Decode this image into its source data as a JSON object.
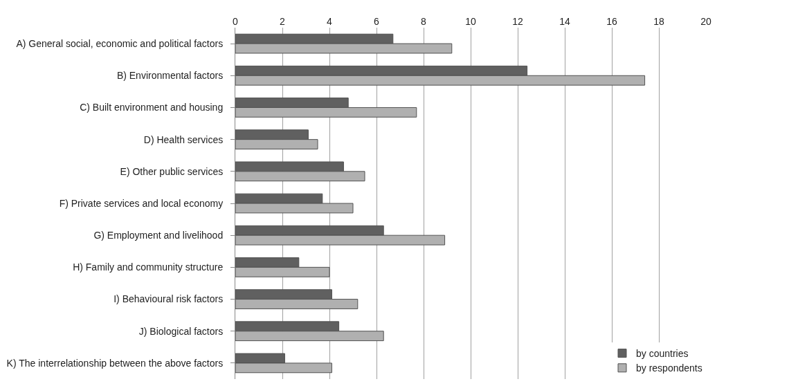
{
  "chart_data": {
    "type": "bar",
    "orientation": "horizontal",
    "categories": [
      "A) General social, economic and political factors",
      "B) Environmental factors",
      "C) Built environment and housing",
      "D) Health services",
      "E) Other public services",
      "F) Private services and local economy",
      "G) Employment and livelihood",
      "H) Family and community structure",
      "I) Behavioural risk factors",
      "J) Biological factors",
      "K) The interrelationship between the above factors"
    ],
    "series": [
      {
        "name": "by countries",
        "color": "#606060",
        "values": [
          6.7,
          12.4,
          4.8,
          3.1,
          4.6,
          3.7,
          6.3,
          2.7,
          4.1,
          4.4,
          2.1
        ]
      },
      {
        "name": "by respondents",
        "color": "#b0b0b0",
        "values": [
          9.2,
          17.4,
          7.7,
          3.5,
          5.5,
          5.0,
          8.9,
          4.0,
          5.2,
          6.3,
          4.1
        ]
      }
    ],
    "xlim": [
      0,
      20
    ],
    "xticks": [
      0,
      2,
      4,
      6,
      8,
      10,
      12,
      14,
      16,
      18,
      20
    ],
    "grid": "x",
    "legend": "bottom right"
  }
}
